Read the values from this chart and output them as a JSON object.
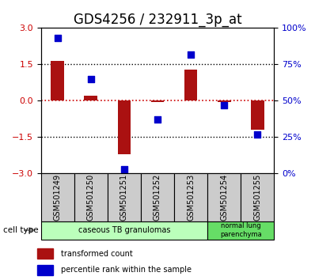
{
  "title": "GDS4256 / 232911_3p_at",
  "samples": [
    "GSM501249",
    "GSM501250",
    "GSM501251",
    "GSM501252",
    "GSM501253",
    "GSM501254",
    "GSM501255"
  ],
  "transformed_count": [
    1.65,
    0.2,
    -2.2,
    -0.05,
    1.3,
    -0.05,
    -1.2
  ],
  "percentile_rank": [
    93,
    65,
    3,
    37,
    82,
    47,
    27
  ],
  "ylim_left": [
    -3,
    3
  ],
  "ylim_right": [
    0,
    100
  ],
  "yticks_left": [
    -3,
    -1.5,
    0,
    1.5,
    3
  ],
  "yticks_right": [
    0,
    25,
    50,
    75,
    100
  ],
  "ytick_labels_right": [
    "0%",
    "25%",
    "50%",
    "75%",
    "100%"
  ],
  "bar_color": "#AA1111",
  "dot_color": "#0000CC",
  "bar_width": 0.4,
  "dot_size": 40,
  "legend_bar_label": "transformed count",
  "legend_dot_label": "percentile rank within the sample",
  "cell_type_label": "cell type",
  "hline_color": "#CC0000",
  "title_fontsize": 12,
  "tick_fontsize": 8,
  "sample_label_fontsize": 7
}
